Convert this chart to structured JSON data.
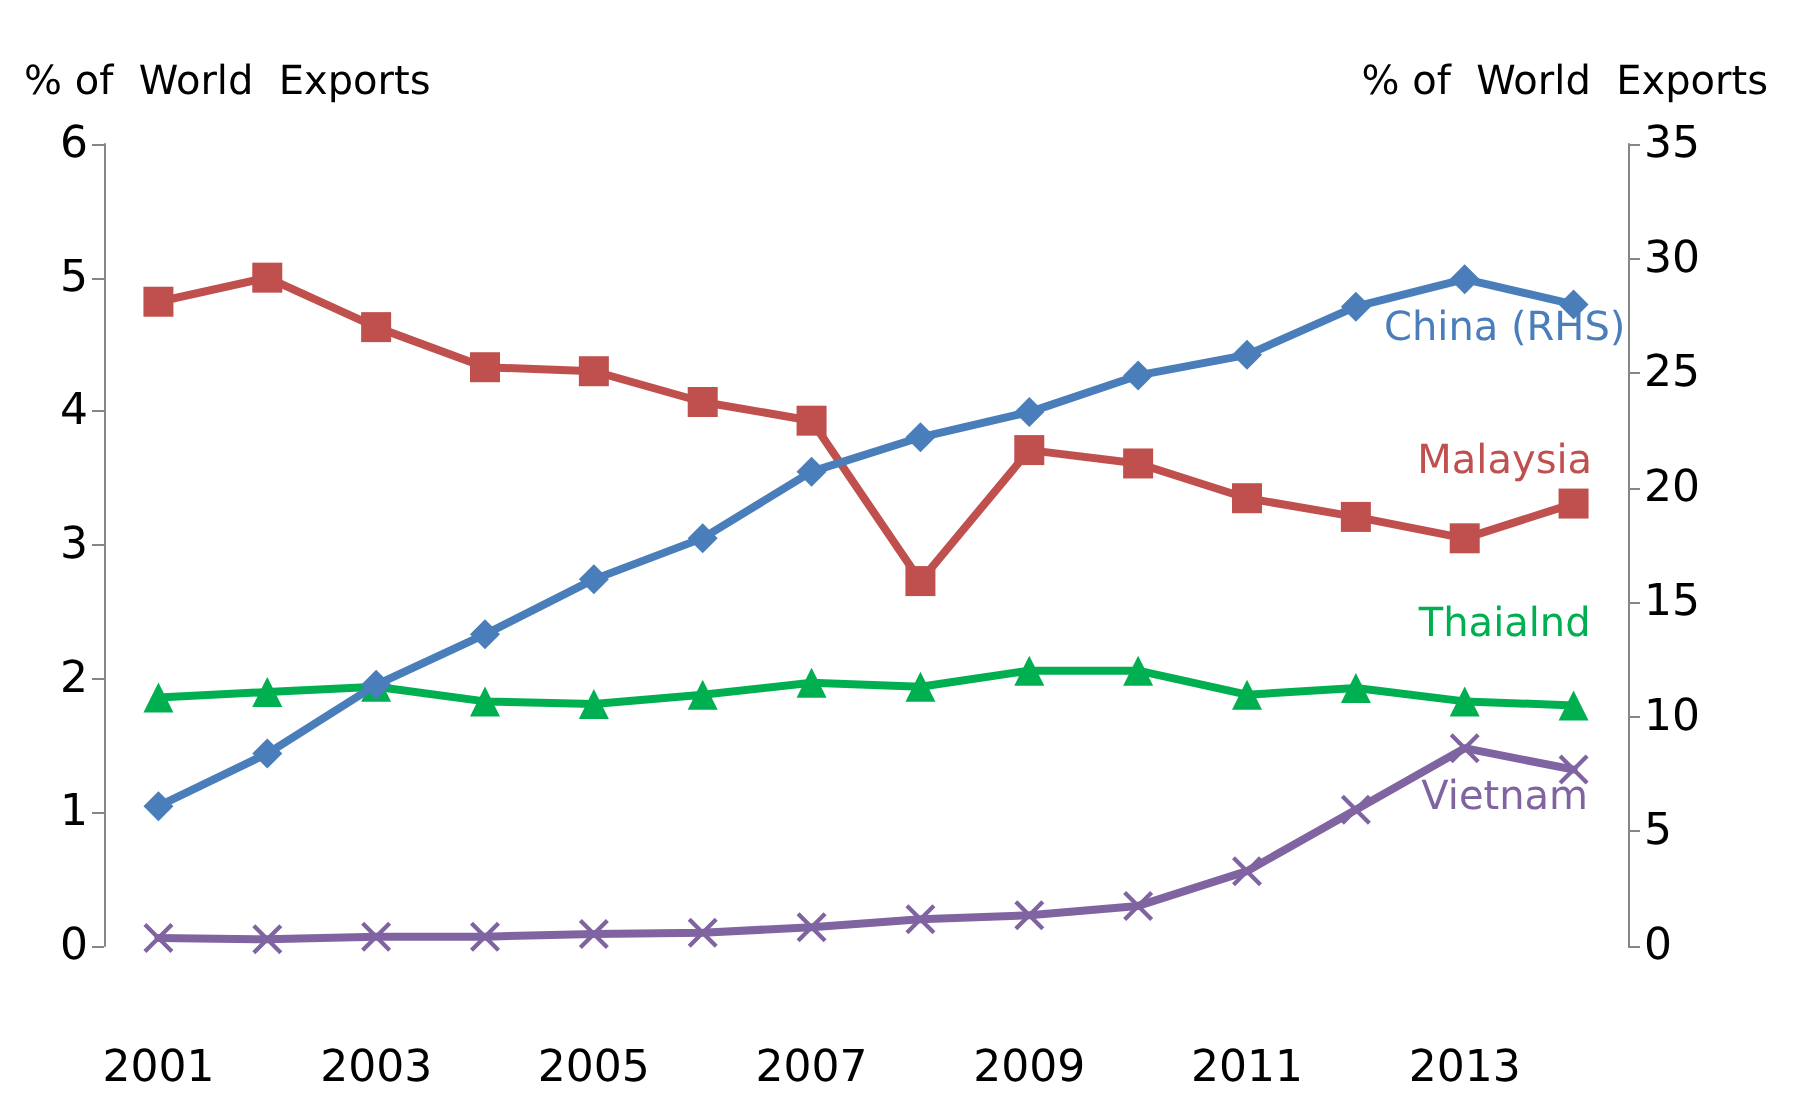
{
  "chart_data": {
    "type": "line",
    "ylabel": "% of  World  Exports",
    "y2label": "% of  World  Exports",
    "categories": [
      "2001",
      null,
      "2003",
      null,
      "2005",
      null,
      "2007",
      null,
      "2009",
      null,
      "2011",
      null,
      "2013",
      null
    ],
    "ylim": [
      0,
      6
    ],
    "yticks": [
      0,
      1,
      2,
      3,
      4,
      5,
      6
    ],
    "y2lim": [
      0,
      35
    ],
    "y2ticks": [
      0,
      5,
      10,
      15,
      20,
      25,
      30,
      35
    ],
    "grid": false,
    "legend": false,
    "line_style": "solid",
    "series": [
      {
        "name": "China (RHS)",
        "color": "#4a7ebb",
        "axis": "y2",
        "marker": "diamond",
        "values": [
          6.1,
          8.4,
          11.4,
          13.6,
          16.0,
          17.8,
          20.7,
          22.2,
          23.3,
          24.9,
          25.8,
          27.9,
          29.1,
          28.0
        ]
      },
      {
        "name": "Malaysia",
        "color": "#c0504d",
        "marker": "square",
        "values": [
          4.82,
          5.0,
          4.63,
          4.33,
          4.3,
          4.07,
          3.93,
          2.73,
          3.71,
          3.61,
          3.35,
          3.21,
          3.05,
          3.31
        ]
      },
      {
        "name": "Thaialnd",
        "color": "#00b050",
        "marker": "triangle",
        "values": [
          1.86,
          1.9,
          1.94,
          1.83,
          1.81,
          1.88,
          1.97,
          1.94,
          2.06,
          2.06,
          1.88,
          1.93,
          1.83,
          1.8
        ]
      },
      {
        "name": "Vietnam",
        "color": "#8064a2",
        "marker": "cross",
        "values": [
          0.06,
          0.05,
          0.07,
          0.07,
          0.09,
          0.1,
          0.14,
          0.2,
          0.23,
          0.3,
          0.56,
          1.02,
          1.48,
          1.32
        ]
      }
    ]
  }
}
